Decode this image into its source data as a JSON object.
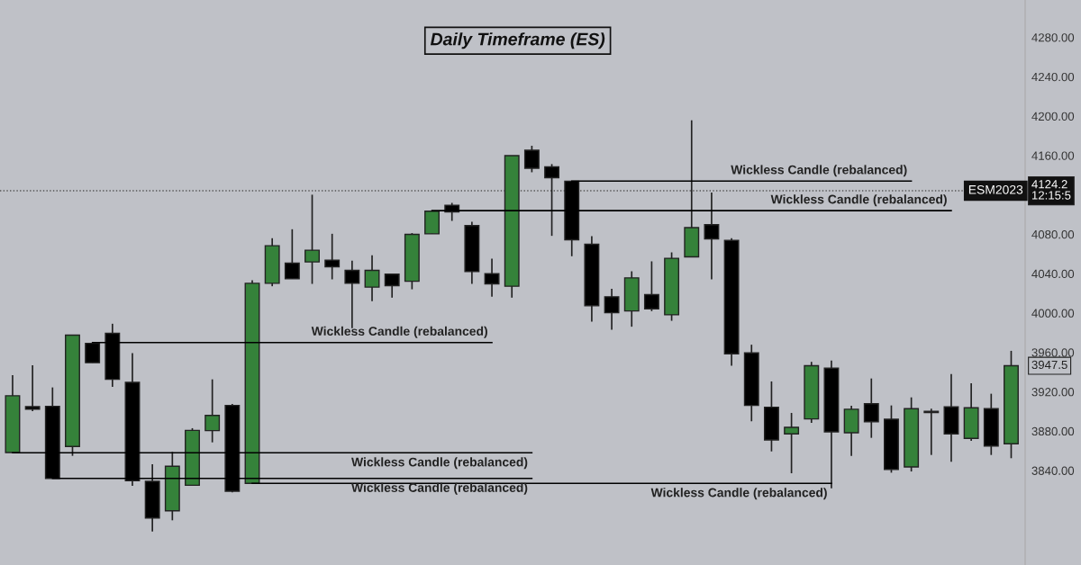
{
  "chart_data": {
    "type": "candlestick",
    "title": "Daily Timeframe (ES)",
    "categories": [
      null,
      null,
      null,
      null,
      null,
      null,
      null,
      null,
      null,
      null,
      null,
      null,
      null,
      null,
      null,
      null,
      null,
      null,
      null,
      null,
      null,
      null,
      null,
      null,
      null,
      null,
      null,
      null,
      null,
      null,
      null,
      null,
      null,
      null,
      null,
      null,
      null,
      null,
      null,
      null,
      null,
      null,
      null,
      null,
      null,
      null,
      null,
      null,
      null,
      null,
      null
    ],
    "ohlc": [
      [
        3858.3,
        3936.9,
        3858.3,
        3915.9
      ],
      [
        3904.9,
        3947.0,
        3900.3,
        3902.2
      ],
      [
        3905.2,
        3924.4,
        3832.0,
        3832.0
      ],
      [
        3864.4,
        3978.0,
        3854.9,
        3977.5
      ],
      [
        3969.2,
        3969.2,
        3949.5,
        3949.5
      ],
      [
        3979.3,
        3989.1,
        3925.0,
        3932.6
      ],
      [
        3929.6,
        3959.2,
        3824.4,
        3829.6
      ],
      [
        3829.0,
        3846.4,
        3778.0,
        3791.8
      ],
      [
        3799.1,
        3858.9,
        3789.4,
        3844.3
      ],
      [
        3825.0,
        3883.0,
        3825.0,
        3880.8
      ],
      [
        3880.5,
        3932.6,
        3868.6,
        3896.0
      ],
      [
        3906.1,
        3907.7,
        3817.7,
        3818.9
      ],
      [
        3826.9,
        4033.3,
        3826.9,
        4030.2
      ],
      [
        4030.2,
        4076.0,
        4027.2,
        4068.4
      ],
      [
        4050.6,
        4085.1,
        4034.8,
        4034.8
      ],
      [
        4051.9,
        4120.2,
        4029.6,
        4063.8
      ],
      [
        4053.7,
        4080.5,
        4034.2,
        4047.0
      ],
      [
        4043.3,
        4053.1,
        3984.5,
        4030.2
      ],
      [
        4026.3,
        4058.6,
        4012.0,
        4043.3
      ],
      [
        4039.4,
        4039.4,
        4015.6,
        4027.8
      ],
      [
        4032.3,
        4081.2,
        4024.1,
        4079.9
      ],
      [
        4080.5,
        4104.0,
        4080.5,
        4103.4
      ],
      [
        4109.5,
        4111.9,
        4093.6,
        4102.8
      ],
      [
        4088.8,
        4092.7,
        4029.6,
        4042.1
      ],
      [
        4040.0,
        4055.2,
        4016.5,
        4029.6
      ],
      [
        4027.2,
        4159.9,
        4015.6,
        4159.9
      ],
      [
        4165.3,
        4169.9,
        4143.0,
        4147.1
      ],
      [
        4148.5,
        4151.3,
        4078.4,
        4137.5
      ],
      [
        4133.9,
        4133.9,
        4057.7,
        4074.4
      ],
      [
        4069.8,
        4078.1,
        3991.2,
        4007.4
      ],
      [
        4016.5,
        4024.7,
        3983.0,
        4000.3
      ],
      [
        4002.1,
        4042.4,
        3986.1,
        4035.7
      ],
      [
        4018.6,
        4052.5,
        4001.9,
        4004.3
      ],
      [
        3998.2,
        4061.6,
        3992.1,
        4055.6
      ],
      [
        4057.0,
        4195.8,
        4057.0,
        4086.7
      ],
      [
        4089.7,
        4122.4,
        4034.2,
        4075.3
      ],
      [
        4073.7,
        4076.0,
        3946.4,
        3958.6
      ],
      [
        3959.5,
        3967.8,
        3890.0,
        3906.1
      ],
      [
        3904.3,
        3930.5,
        3859.4,
        3871.1
      ],
      [
        3877.2,
        3898.5,
        3837.2,
        3883.9
      ],
      [
        3892.4,
        3950.4,
        3888.4,
        3946.4
      ],
      [
        3944.0,
        3951.8,
        3821.9,
        3879.3
      ],
      [
        3878.4,
        3905.8,
        3854.9,
        3902.2
      ],
      [
        3907.9,
        3933.5,
        3873.2,
        3889.6
      ],
      [
        3892.1,
        3906.1,
        3837.8,
        3841.1
      ],
      [
        3843.6,
        3914.3,
        3839.0,
        3902.8
      ],
      [
        3900.1,
        3902.8,
        3855.8,
        3898.8
      ],
      [
        3904.6,
        3938.1,
        3848.8,
        3877.2
      ],
      [
        3872.6,
        3928.7,
        3870.1,
        3903.7
      ],
      [
        3902.8,
        3918.0,
        3855.8,
        3864.9
      ],
      [
        3867.1,
        3961.6,
        3852.5,
        3946.4
      ]
    ],
    "colors": [
      "#35823a",
      "#000000",
      "#000000",
      "#35823a",
      "#000000",
      "#000000",
      "#000000",
      "#000000",
      "#35823a",
      "#35823a",
      "#35823a",
      "#000000",
      "#35823a",
      "#35823a",
      "#000000",
      "#35823a",
      "#000000",
      "#000000",
      "#35823a",
      "#000000",
      "#35823a",
      "#35823a",
      "#000000",
      "#000000",
      "#000000",
      "#35823a",
      "#000000",
      "#000000",
      "#000000",
      "#000000",
      "#000000",
      "#35823a",
      "#000000",
      "#35823a",
      "#35823a",
      "#000000",
      "#000000",
      "#000000",
      "#000000",
      "#35823a",
      "#35823a",
      "#000000",
      "#35823a",
      "#000000",
      "#000000",
      "#35823a",
      "#000000",
      "#000000",
      "#35823a",
      "#000000",
      "#35823a"
    ],
    "series": [
      {
        "type": "line",
        "name": "Wickless Candle (rebalanced)",
        "color": "#000000",
        "values": [
          null,
          null,
          null,
          null,
          3970,
          3970,
          3970,
          3970,
          3970,
          3970,
          3970,
          3970,
          3970,
          3970,
          3970,
          3970,
          3970,
          3970,
          3970,
          3970,
          3970,
          3970,
          3970,
          3970,
          3970,
          null,
          null,
          null,
          null,
          null,
          null,
          null,
          null,
          null,
          null,
          null,
          null,
          null,
          null,
          null,
          null,
          null,
          null,
          null,
          null,
          null,
          null,
          null,
          null,
          null,
          null
        ]
      },
      {
        "type": "line",
        "name": "Wickless Candle (rebalanced)",
        "color": "#000000",
        "values": [
          3858,
          3858,
          3858,
          3858,
          3858,
          3858,
          3858,
          3858,
          3858,
          3858,
          3858,
          3858,
          3858,
          3858,
          3858,
          3858,
          3858,
          3858,
          3858,
          3858,
          3858,
          3858,
          3858,
          3858,
          3858,
          3858,
          3858,
          null,
          null,
          null,
          null,
          null,
          null,
          null,
          null,
          null,
          null,
          null,
          null,
          null,
          null,
          null,
          null,
          null,
          null,
          null,
          null,
          null,
          null,
          null,
          null
        ]
      },
      {
        "type": "line",
        "name": "Wickless Candle (rebalanced)",
        "color": "#000000",
        "values": [
          null,
          null,
          3832,
          3832,
          3832,
          3832,
          3832,
          3832,
          3832,
          3832,
          3832,
          3832,
          3832,
          3832,
          3832,
          3832,
          3832,
          3832,
          3832,
          3832,
          3832,
          3832,
          3832,
          3832,
          3832,
          3832,
          3832,
          null,
          null,
          null,
          null,
          null,
          null,
          null,
          null,
          null,
          null,
          null,
          null,
          null,
          null,
          null,
          null,
          null,
          null,
          null,
          null,
          null,
          null,
          null,
          null
        ]
      },
      {
        "type": "line",
        "name": "Wickless Candle (rebalanced)",
        "color": "#000000",
        "values": [
          null,
          null,
          null,
          null,
          null,
          null,
          null,
          null,
          null,
          null,
          null,
          null,
          3827,
          3827,
          3827,
          3827,
          3827,
          3827,
          3827,
          3827,
          3827,
          3827,
          3827,
          3827,
          3827,
          3827,
          3827,
          3827,
          3827,
          3827,
          3827,
          3827,
          3827,
          3827,
          3827,
          3827,
          3827,
          3827,
          3827,
          3827,
          3827,
          3827,
          null,
          null,
          null,
          null,
          null,
          null,
          null,
          null,
          null
        ]
      },
      {
        "type": "line",
        "name": "Wickless Candle (rebalanced)",
        "color": "#000000",
        "values": [
          null,
          null,
          null,
          null,
          null,
          null,
          null,
          null,
          null,
          null,
          null,
          null,
          null,
          null,
          null,
          null,
          null,
          null,
          null,
          null,
          null,
          null,
          null,
          null,
          null,
          null,
          null,
          null,
          4134,
          4134,
          4134,
          4134,
          4134,
          4134,
          4134,
          4134,
          4134,
          4134,
          4134,
          4134,
          4134,
          4134,
          4134,
          4134,
          4134,
          4134,
          null,
          null,
          null,
          null,
          null
        ]
      },
      {
        "type": "line",
        "name": "Wickless Candle (rebalanced)",
        "color": "#000000",
        "values": [
          null,
          null,
          null,
          null,
          null,
          null,
          null,
          null,
          null,
          null,
          null,
          null,
          null,
          null,
          null,
          null,
          null,
          null,
          null,
          null,
          null,
          4104,
          4104,
          4104,
          4104,
          4104,
          4104,
          4104,
          4104,
          4104,
          4104,
          4104,
          4104,
          4104,
          4104,
          4104,
          4104,
          4104,
          4104,
          4104,
          4104,
          4104,
          4104,
          4104,
          4104,
          4104,
          4104,
          4104,
          null,
          null,
          null
        ]
      }
    ],
    "ref_lines": [
      {
        "axis": "y",
        "value": 4124.2,
        "label": "ESM2023",
        "line_style": "dotted",
        "color": "#555555"
      }
    ],
    "annotations": [
      "4124.2\n12:15:5",
      "3947.5"
    ],
    "ylim": [
      3744,
      4318
    ],
    "yticks": [
      {
        "value": 3840,
        "label": "3840.00"
      },
      {
        "value": 3880,
        "label": "3880.00"
      },
      {
        "value": 3920,
        "label": "3920.00"
      },
      {
        "value": 3960,
        "label": "3960.00"
      },
      {
        "value": 4000,
        "label": "4000.00"
      },
      {
        "value": 4040,
        "label": "4040.00"
      },
      {
        "value": 4080,
        "label": "4080.00"
      },
      {
        "value": 4160,
        "label": "4160.00"
      },
      {
        "value": 4200,
        "label": "4200.00"
      },
      {
        "value": 4240,
        "label": "4240.00"
      },
      {
        "value": 4280,
        "label": "4280.00"
      }
    ],
    "tick_labels": "y",
    "grid": false,
    "marker": "none"
  }
}
